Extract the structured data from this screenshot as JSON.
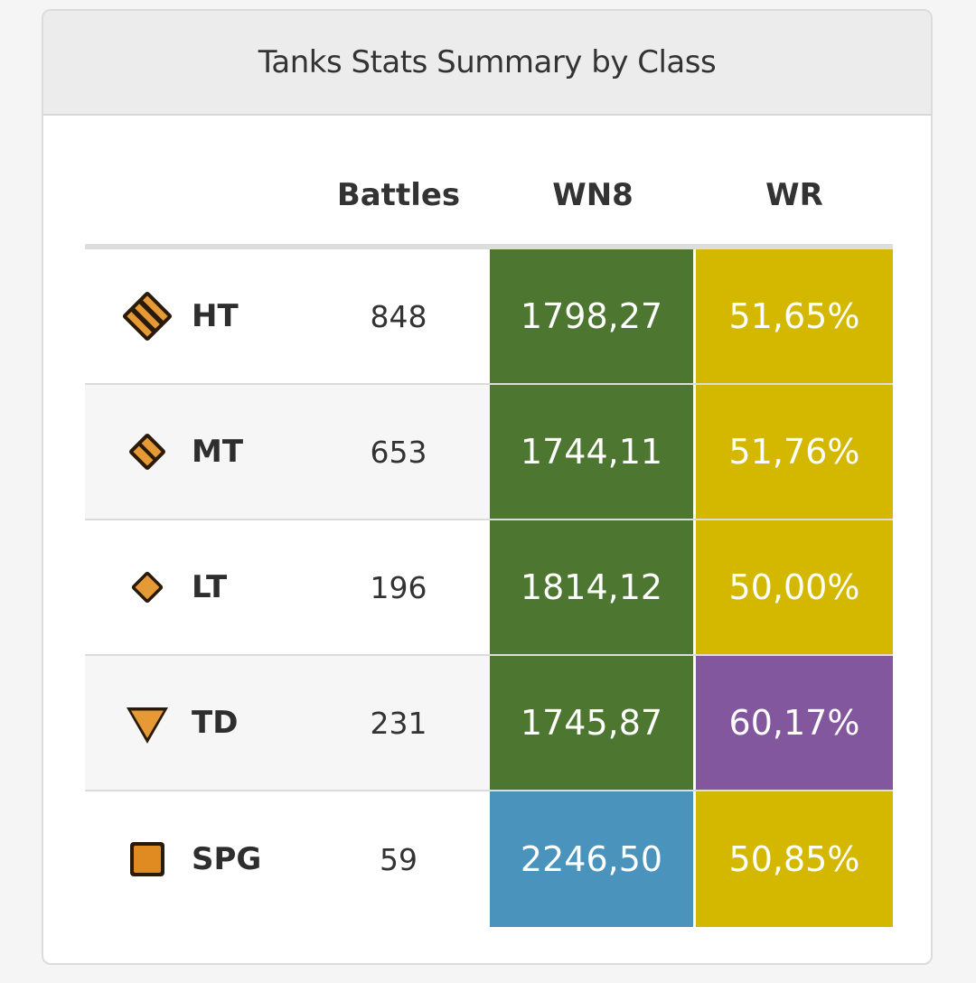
{
  "card": {
    "title": "Tanks Stats Summary by Class"
  },
  "table": {
    "headers": {
      "class": "",
      "battles": "Battles",
      "wn8": "WN8",
      "wr": "WR"
    },
    "rows": [
      {
        "class": "HT",
        "icon": "heavy-tank-icon",
        "battles": "848",
        "wn8": "1798,27",
        "wr": "51,65%",
        "wn8_color": "#4d7630",
        "wr_color": "#d4b800"
      },
      {
        "class": "MT",
        "icon": "medium-tank-icon",
        "battles": "653",
        "wn8": "1744,11",
        "wr": "51,76%",
        "wn8_color": "#4d7630",
        "wr_color": "#d4b800"
      },
      {
        "class": "LT",
        "icon": "light-tank-icon",
        "battles": "196",
        "wn8": "1814,12",
        "wr": "50,00%",
        "wn8_color": "#4d7630",
        "wr_color": "#d4b800"
      },
      {
        "class": "TD",
        "icon": "tank-destroyer-icon",
        "battles": "231",
        "wn8": "1745,87",
        "wr": "60,17%",
        "wn8_color": "#4d7630",
        "wr_color": "#83579d"
      },
      {
        "class": "SPG",
        "icon": "artillery-icon",
        "battles": "59",
        "wn8": "2246,50",
        "wr": "50,85%",
        "wn8_color": "#4a93bc",
        "wr_color": "#d4b800"
      }
    ]
  },
  "icon_colors": {
    "fill": "#e69a35",
    "outline": "#2a1a0a"
  }
}
